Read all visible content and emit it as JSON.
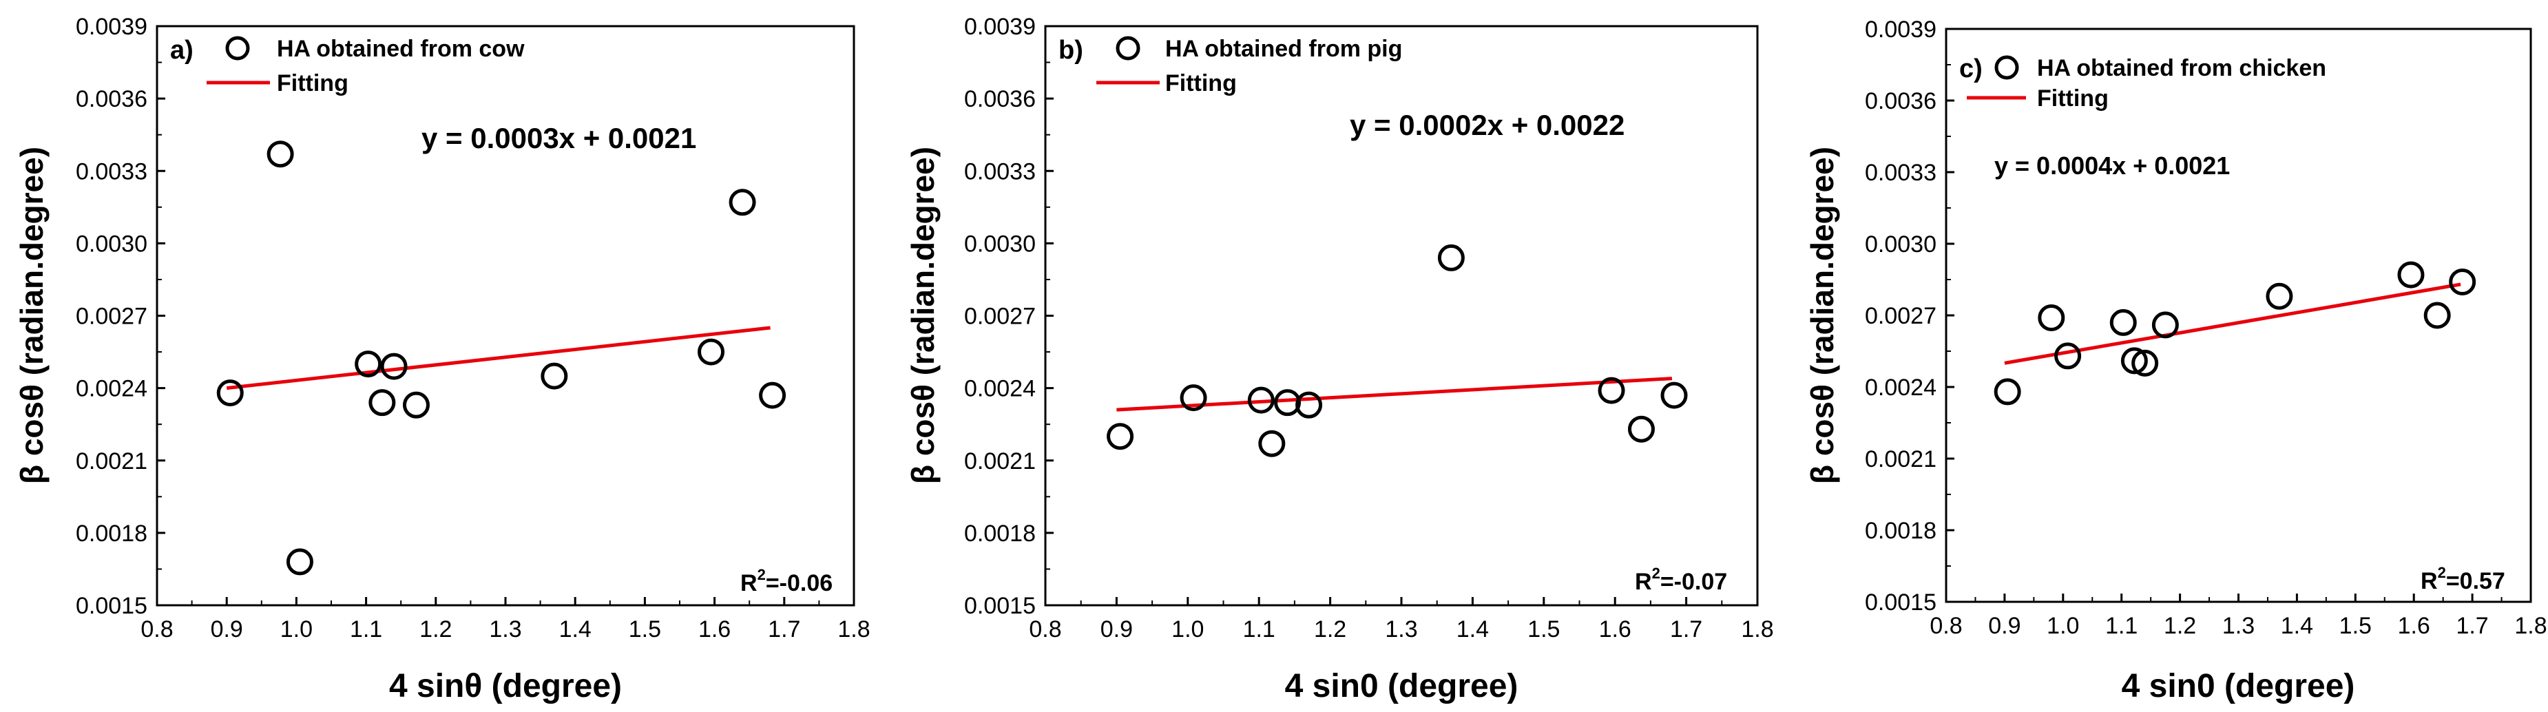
{
  "chart_data": [
    {
      "type": "scatter",
      "panel_label": "a)",
      "xlabel": "4 sinθ (degree)",
      "ylabel": "β cosθ (radian.degree)",
      "xlim": [
        0.8,
        1.8
      ],
      "ylim": [
        0.0015,
        0.0039
      ],
      "xticks": [
        "0.8",
        "0.9",
        "1.0",
        "1.1",
        "1.2",
        "1.3",
        "1.4",
        "1.5",
        "1.6",
        "1.7",
        "1.8"
      ],
      "yticks": [
        "0.0015",
        "0.0018",
        "0.0021",
        "0.0024",
        "0.0027",
        "0.0030",
        "0.0033",
        "0.0036",
        "0.0039"
      ],
      "series": [
        {
          "name": "HA obtained from cow",
          "marker": "circle",
          "points": [
            {
              "x": 0.905,
              "y": 0.00238
            },
            {
              "x": 0.977,
              "y": 0.00337
            },
            {
              "x": 1.005,
              "y": 0.00168
            },
            {
              "x": 1.103,
              "y": 0.0025
            },
            {
              "x": 1.123,
              "y": 0.00234
            },
            {
              "x": 1.14,
              "y": 0.00249
            },
            {
              "x": 1.172,
              "y": 0.00233
            },
            {
              "x": 1.37,
              "y": 0.00245
            },
            {
              "x": 1.595,
              "y": 0.00255
            },
            {
              "x": 1.64,
              "y": 0.00317
            },
            {
              "x": 1.683,
              "y": 0.00237
            }
          ]
        }
      ],
      "fit": {
        "name": "Fitting",
        "x": [
          0.9,
          1.68
        ],
        "y": [
          0.0024,
          0.00265
        ],
        "color": "#e8000b"
      },
      "equation": "y = 0.0003x + 0.0021",
      "r2_label": "R",
      "r2_sup": "2",
      "r2_value": "=-0.06"
    },
    {
      "type": "scatter",
      "panel_label": "b)",
      "xlabel": "4 sin0 (degree)",
      "ylabel": "β cosθ (radian.degree)",
      "xlim": [
        0.8,
        1.8
      ],
      "ylim": [
        0.0015,
        0.0039
      ],
      "xticks": [
        "0.8",
        "0.9",
        "1.0",
        "1.1",
        "1.2",
        "1.3",
        "1.4",
        "1.5",
        "1.6",
        "1.7",
        "1.8"
      ],
      "yticks": [
        "0.0015",
        "0.0018",
        "0.0021",
        "0.0024",
        "0.0027",
        "0.0030",
        "0.0033",
        "0.0036",
        "0.0039"
      ],
      "series": [
        {
          "name": "HA obtained from pig",
          "marker": "circle",
          "points": [
            {
              "x": 0.905,
              "y": 0.0022
            },
            {
              "x": 1.008,
              "y": 0.00236
            },
            {
              "x": 1.103,
              "y": 0.00235
            },
            {
              "x": 1.118,
              "y": 0.00217
            },
            {
              "x": 1.14,
              "y": 0.00234
            },
            {
              "x": 1.17,
              "y": 0.00233
            },
            {
              "x": 1.37,
              "y": 0.00294
            },
            {
              "x": 1.595,
              "y": 0.00239
            },
            {
              "x": 1.637,
              "y": 0.00223
            },
            {
              "x": 1.683,
              "y": 0.00237
            }
          ]
        }
      ],
      "fit": {
        "name": "Fitting",
        "x": [
          0.9,
          1.68
        ],
        "y": [
          0.00231,
          0.00244
        ],
        "color": "#e8000b"
      },
      "equation": "y = 0.0002x + 0.0022",
      "r2_label": "R",
      "r2_sup": "2",
      "r2_value": "=-0.07"
    },
    {
      "type": "scatter",
      "panel_label": "c)",
      "xlabel": "4 sin0 (degree)",
      "ylabel": "β cosθ (radian.degree)",
      "xlim": [
        0.8,
        1.8
      ],
      "ylim": [
        0.0015,
        0.0039
      ],
      "xticks": [
        "0.8",
        "0.9",
        "1.0",
        "1.1",
        "1.2",
        "1.3",
        "1.4",
        "1.5",
        "1.6",
        "1.7",
        "1.8"
      ],
      "yticks": [
        "0.0015",
        "0.0018",
        "0.0021",
        "0.0024",
        "0.0027",
        "0.0030",
        "0.0033",
        "0.0036",
        "0.0039"
      ],
      "series": [
        {
          "name": "HA obtained from chicken",
          "marker": "circle",
          "points": [
            {
              "x": 0.905,
              "y": 0.00238
            },
            {
              "x": 0.98,
              "y": 0.00269
            },
            {
              "x": 1.008,
              "y": 0.00253
            },
            {
              "x": 1.103,
              "y": 0.00267
            },
            {
              "x": 1.122,
              "y": 0.00251
            },
            {
              "x": 1.14,
              "y": 0.0025
            },
            {
              "x": 1.175,
              "y": 0.00266
            },
            {
              "x": 1.37,
              "y": 0.00278
            },
            {
              "x": 1.595,
              "y": 0.00287
            },
            {
              "x": 1.64,
              "y": 0.0027
            },
            {
              "x": 1.683,
              "y": 0.00284
            }
          ]
        }
      ],
      "fit": {
        "name": "Fitting",
        "x": [
          0.9,
          1.68
        ],
        "y": [
          0.0025,
          0.00283
        ],
        "color": "#e8000b"
      },
      "equation": "y = 0.0004x + 0.0021",
      "r2_label": "R",
      "r2_sup": "2",
      "r2_value": "=0.57"
    }
  ]
}
